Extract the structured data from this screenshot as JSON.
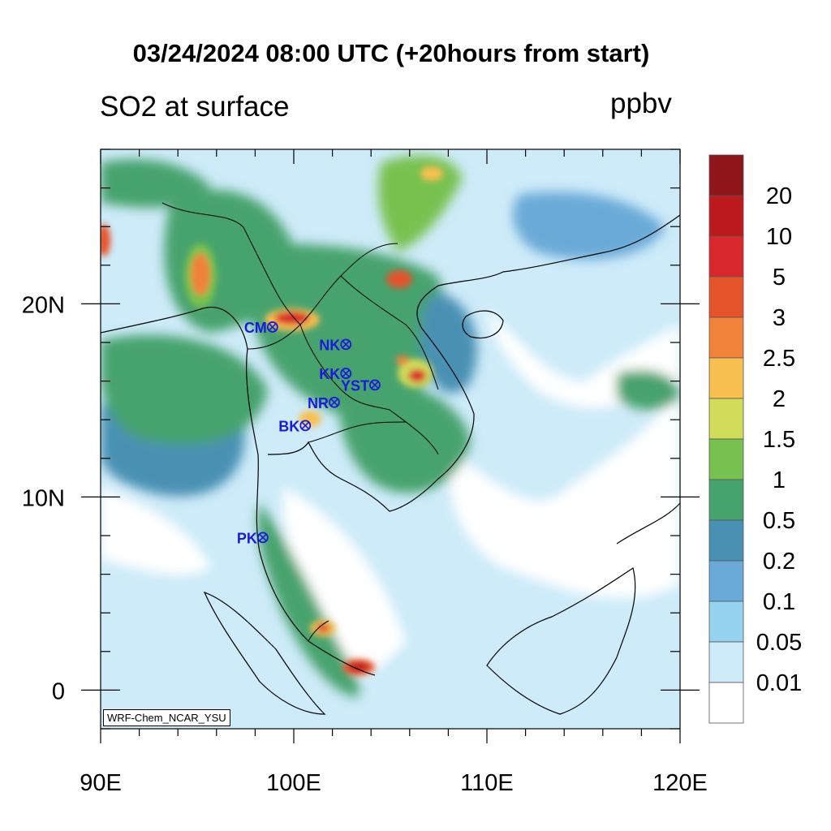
{
  "header": {
    "title": "03/24/2024 08:00 UTC (+20hours from start)",
    "variable": "SO2 at surface",
    "units": "ppbv"
  },
  "credit": "WRF-Chem_NCAR_YSU",
  "axes": {
    "lon_ticks": [
      {
        "value": 90,
        "label": "90E"
      },
      {
        "value": 100,
        "label": "100E"
      },
      {
        "value": 110,
        "label": "110E"
      },
      {
        "value": 120,
        "label": "120E"
      }
    ],
    "lat_ticks": [
      {
        "value": 20,
        "label": "20N"
      },
      {
        "value": 10,
        "label": "10N"
      },
      {
        "value": 0,
        "label": "0"
      }
    ],
    "lon_range": [
      90,
      120
    ],
    "lat_range": [
      -2,
      28
    ]
  },
  "colorbar": {
    "labels": [
      "20",
      "10",
      "5",
      "3",
      "2.5",
      "2",
      "1.5",
      "1",
      "0.5",
      "0.2",
      "0.1",
      "0.05",
      "0.01"
    ],
    "colors_top_to_bottom": [
      "#8e1519",
      "#bc1a1f",
      "#d8282b",
      "#e5532b",
      "#f0823a",
      "#f8c050",
      "#d0dc5a",
      "#78c150",
      "#46a36d",
      "#4891b3",
      "#6aaad8",
      "#95d3f0",
      "#cdebf9",
      "#ffffff"
    ]
  },
  "stations": [
    {
      "code": "CM",
      "lon": 98.9,
      "lat": 18.8
    },
    {
      "code": "NK",
      "lon": 102.7,
      "lat": 17.9
    },
    {
      "code": "KK",
      "lon": 102.7,
      "lat": 16.4
    },
    {
      "code": "YST",
      "lon": 104.2,
      "lat": 15.8
    },
    {
      "code": "NR",
      "lon": 102.1,
      "lat": 14.9
    },
    {
      "code": "BK",
      "lon": 100.6,
      "lat": 13.7
    },
    {
      "code": "PK",
      "lon": 98.4,
      "lat": 7.9
    }
  ],
  "style": {
    "ocean_color": "#ffffff",
    "station_color": "#1a1adc"
  }
}
